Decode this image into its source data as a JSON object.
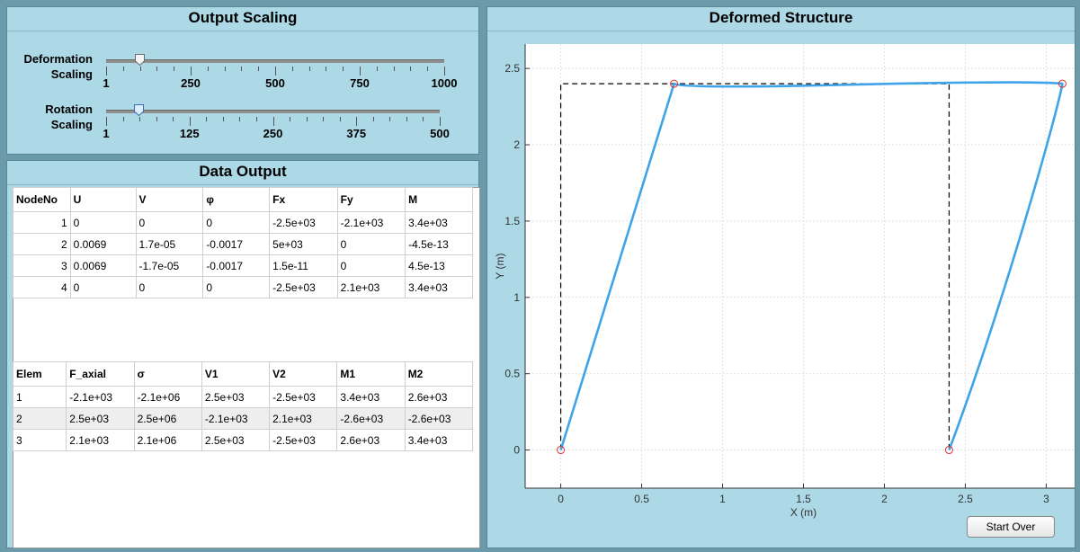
{
  "output_scaling": {
    "title": "Output Scaling",
    "deformation": {
      "label_line1": "Deformation",
      "label_line2": "Scaling",
      "min": 1,
      "max": 1000,
      "value": 100,
      "tick_labels": [
        "1",
        "250",
        "500",
        "750",
        "1000"
      ]
    },
    "rotation": {
      "label_line1": "Rotation",
      "label_line2": "Scaling",
      "min": 1,
      "max": 500,
      "value": 50,
      "tick_labels": [
        "1",
        "125",
        "250",
        "375",
        "500"
      ]
    }
  },
  "data_output": {
    "title": "Data Output",
    "node_table": {
      "headers": [
        "NodeNo",
        "U",
        "V",
        "φ",
        "Fx",
        "Fy",
        "M"
      ],
      "rows": [
        [
          "1",
          "0",
          "0",
          "0",
          "-2.5e+03",
          "-2.1e+03",
          "3.4e+03"
        ],
        [
          "2",
          "0.0069",
          "1.7e-05",
          "-0.0017",
          "5e+03",
          "0",
          "-4.5e-13"
        ],
        [
          "3",
          "0.0069",
          "-1.7e-05",
          "-0.0017",
          "1.5e-11",
          "0",
          "4.5e-13"
        ],
        [
          "4",
          "0",
          "0",
          "0",
          "-2.5e+03",
          "2.1e+03",
          "3.4e+03"
        ]
      ]
    },
    "elem_table": {
      "headers": [
        "Elem",
        "F_axial",
        "σ",
        "V1",
        "V2",
        "M1",
        "M2"
      ],
      "rows": [
        [
          "1",
          "-2.1e+03",
          "-2.1e+06",
          "2.5e+03",
          "-2.5e+03",
          "3.4e+03",
          "2.6e+03"
        ],
        [
          "2",
          "2.5e+03",
          "2.5e+06",
          "-2.1e+03",
          "2.1e+03",
          "-2.6e+03",
          "-2.6e+03"
        ],
        [
          "3",
          "2.1e+03",
          "2.1e+06",
          "2.5e+03",
          "-2.5e+03",
          "2.6e+03",
          "3.4e+03"
        ]
      ]
    }
  },
  "deformed_structure": {
    "title": "Deformed Structure",
    "xlabel": "X (m)",
    "ylabel": "Y (m)",
    "xlim": [
      -0.22,
      3.22
    ],
    "ylim": [
      -0.25,
      2.66
    ],
    "x_ticks": [
      0,
      0.5,
      1,
      1.5,
      2,
      2.5,
      3
    ],
    "y_ticks": [
      0,
      0.5,
      1,
      1.5,
      2,
      2.5
    ],
    "x_tick_labels": [
      "0",
      "0.5",
      "1",
      "1.5",
      "2",
      "2.5",
      "3"
    ],
    "y_tick_labels": [
      "0",
      "0.5",
      "1",
      "1.5",
      "2",
      "2.5"
    ],
    "grid": true,
    "undeformed_color": "#000000",
    "deformed_color": "#3fa3ea",
    "node_marker_color": "#e03030",
    "undeformed_nodes": [
      [
        0,
        0
      ],
      [
        0,
        2.4
      ],
      [
        2.4,
        2.4
      ],
      [
        2.4,
        0
      ]
    ],
    "deformed_nodes": [
      [
        0,
        0
      ],
      [
        0.7,
        2.4
      ],
      [
        3.1,
        2.4
      ],
      [
        2.4,
        0
      ]
    ]
  },
  "chart_data": {
    "type": "line",
    "title": "Deformed Structure",
    "xlabel": "X (m)",
    "ylabel": "Y (m)",
    "xlim": [
      -0.22,
      3.22
    ],
    "ylim": [
      -0.25,
      2.66
    ],
    "series": [
      {
        "x": [
          0,
          0,
          2.4,
          2.4
        ],
        "y": [
          0,
          2.4,
          2.4,
          0
        ]
      },
      {
        "x": [
          0,
          0.7,
          3.1,
          2.4
        ],
        "y": [
          0,
          2.4,
          2.4,
          0
        ]
      }
    ]
  },
  "start_over_label": "Start Over"
}
